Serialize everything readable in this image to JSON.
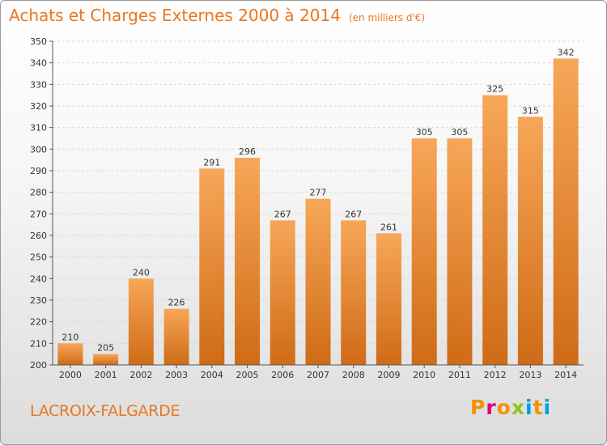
{
  "header": {
    "title": "Achats et Charges Externes 2000 à 2014",
    "unit": "(en milliers d'€)"
  },
  "footer": {
    "town": "LACROIX-FALGARDE",
    "logo": "Proxiti"
  },
  "colors": {
    "accent": "#e87722",
    "bar_top": "#f7a758",
    "bar_bottom": "#cf6b16",
    "grid": "#d8d8d8",
    "axis": "#555555",
    "logo_letters": [
      "#f39200",
      "#e2007a",
      "#f39200",
      "#93c01f",
      "#009fe3",
      "#f39200",
      "#009fe3"
    ]
  },
  "chart_data": {
    "type": "bar",
    "title": "Achats et Charges Externes 2000 à 2014",
    "subtitle": "(en milliers d'€)",
    "categories": [
      "2000",
      "2001",
      "2002",
      "2003",
      "2004",
      "2005",
      "2006",
      "2007",
      "2008",
      "2009",
      "2010",
      "2011",
      "2012",
      "2013",
      "2014"
    ],
    "values": [
      210,
      205,
      240,
      226,
      291,
      296,
      267,
      277,
      267,
      261,
      305,
      305,
      325,
      315,
      342
    ],
    "ylim": [
      200,
      350
    ],
    "yticks": [
      200,
      210,
      220,
      230,
      240,
      250,
      260,
      270,
      280,
      290,
      300,
      310,
      320,
      330,
      340,
      350
    ],
    "grid": "horizontal dashed",
    "xlabel": "",
    "ylabel": ""
  }
}
